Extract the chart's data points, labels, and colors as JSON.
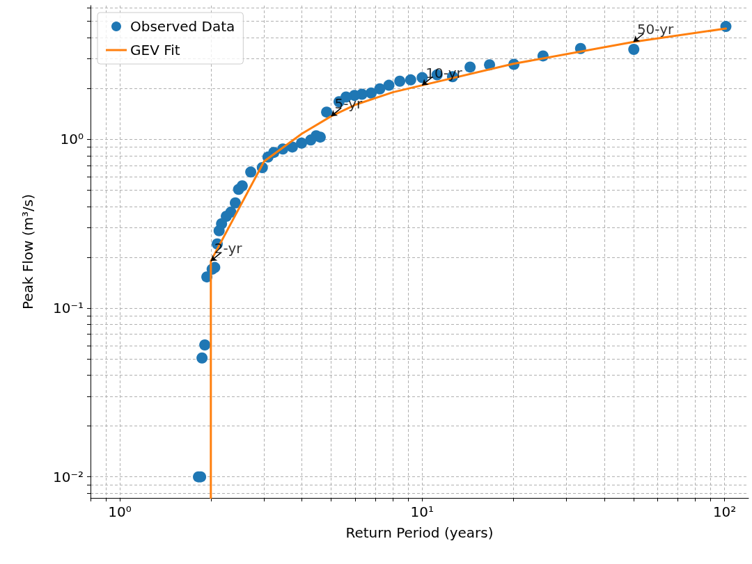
{
  "chart_data": {
    "type": "scatter",
    "xlabel": "Return Period (years)",
    "ylabel": "Peak Flow (m³/s)",
    "log": "xy",
    "grid": true,
    "legend": "top left",
    "marker": "circle",
    "xlim": [
      0.8,
      120
    ],
    "ylim": [
      0.0075,
      6.2
    ],
    "xticks": [
      {
        "value": 0.8,
        "label": null
      },
      {
        "value": 0.9,
        "label": null
      },
      {
        "value": 1,
        "label": "10⁰"
      },
      {
        "value": 2,
        "label": null
      },
      {
        "value": 3,
        "label": null
      },
      {
        "value": 4,
        "label": null
      },
      {
        "value": 5,
        "label": null
      },
      {
        "value": 6,
        "label": null
      },
      {
        "value": 7,
        "label": null
      },
      {
        "value": 8,
        "label": null
      },
      {
        "value": 9,
        "label": null
      },
      {
        "value": 10,
        "label": "10¹"
      },
      {
        "value": 20,
        "label": null
      },
      {
        "value": 30,
        "label": null
      },
      {
        "value": 40,
        "label": null
      },
      {
        "value": 50,
        "label": null
      },
      {
        "value": 60,
        "label": null
      },
      {
        "value": 70,
        "label": null
      },
      {
        "value": 80,
        "label": null
      },
      {
        "value": 90,
        "label": null
      },
      {
        "value": 100,
        "label": "10²"
      }
    ],
    "yticks": [
      {
        "value": 0.008,
        "label": null
      },
      {
        "value": 0.009,
        "label": null
      },
      {
        "value": 0.01,
        "label": "10⁻²"
      },
      {
        "value": 0.02,
        "label": null
      },
      {
        "value": 0.03,
        "label": null
      },
      {
        "value": 0.04,
        "label": null
      },
      {
        "value": 0.05,
        "label": null
      },
      {
        "value": 0.06,
        "label": null
      },
      {
        "value": 0.07,
        "label": null
      },
      {
        "value": 0.08,
        "label": null
      },
      {
        "value": 0.09,
        "label": null
      },
      {
        "value": 0.1,
        "label": "10⁻¹"
      },
      {
        "value": 0.2,
        "label": null
      },
      {
        "value": 0.3,
        "label": null
      },
      {
        "value": 0.4,
        "label": null
      },
      {
        "value": 0.5,
        "label": null
      },
      {
        "value": 0.6,
        "label": null
      },
      {
        "value": 0.7,
        "label": null
      },
      {
        "value": 0.8,
        "label": null
      },
      {
        "value": 0.9,
        "label": null
      },
      {
        "value": 1,
        "label": "10⁰"
      },
      {
        "value": 2,
        "label": null
      },
      {
        "value": 3,
        "label": null
      },
      {
        "value": 4,
        "label": null
      },
      {
        "value": 5,
        "label": null
      },
      {
        "value": 6,
        "label": null
      }
    ],
    "series": [
      {
        "name": "Observed Data",
        "color": "#1f77b4",
        "x": [
          101,
          50.1,
          33.4,
          25.1,
          20.1,
          16.7,
          14.4,
          12.6,
          11.2,
          10.0,
          9.16,
          8.43,
          7.76,
          7.24,
          6.78,
          6.32,
          5.97,
          5.6,
          5.31,
          4.83,
          4.6,
          4.46,
          4.28,
          3.99,
          3.72,
          3.46,
          3.23,
          3.09,
          2.96,
          2.71,
          2.54,
          2.47,
          2.41,
          2.33,
          2.25,
          2.17,
          2.13,
          2.1,
          2.06,
          2.02,
          1.94,
          1.91,
          1.87,
          1.85,
          1.82
        ],
        "values": [
          4.66,
          3.41,
          3.45,
          3.12,
          2.78,
          2.76,
          2.68,
          2.35,
          2.41,
          2.32,
          2.25,
          2.21,
          2.09,
          1.99,
          1.88,
          1.85,
          1.82,
          1.78,
          1.67,
          1.45,
          1.03,
          1.05,
          0.99,
          0.95,
          0.9,
          0.876,
          0.836,
          0.785,
          0.68,
          0.64,
          0.53,
          0.505,
          0.42,
          0.37,
          0.35,
          0.316,
          0.287,
          0.24,
          0.174,
          0.17,
          0.153,
          0.0605,
          0.0506,
          0.01,
          0.01
        ]
      },
      {
        "name": "GEV Fit",
        "type": "line",
        "color": "#ff7f0e",
        "marker": "none",
        "line_style": "solid",
        "x": [
          2,
          2,
          3,
          4,
          5,
          6,
          8,
          10,
          20,
          50,
          101
        ],
        "values": [
          0.0075,
          0.19,
          0.74,
          1.08,
          1.37,
          1.6,
          1.9,
          2.09,
          2.8,
          3.78,
          4.53
        ]
      }
    ],
    "annotations": [
      {
        "text": "2-yr",
        "x": 2,
        "y": 0.19
      },
      {
        "text": "5-yr",
        "x": 5,
        "y": 1.37
      },
      {
        "text": "10-yr",
        "x": 10,
        "y": 2.09
      },
      {
        "text": "50-yr",
        "x": 50,
        "y": 3.78
      }
    ]
  }
}
